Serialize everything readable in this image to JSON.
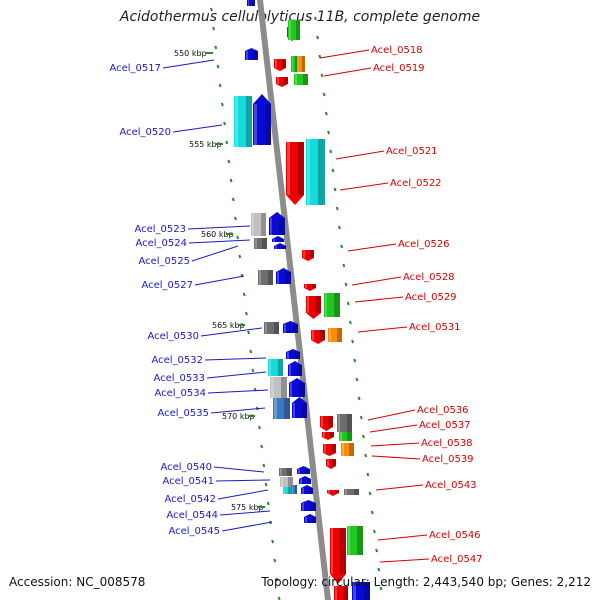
{
  "title": "Acidothermus cellulolyticus 11B, complete genome",
  "accession_text": "Accession: NC_008578",
  "topology_text": "Topology: circular; Length: 2,443,540 bp; Genes: 2,212",
  "ticks": [
    "550 kbp",
    "555 kbp",
    "560 kbp",
    "565 kbp",
    "570 kbp",
    "575 kbp"
  ],
  "colors": {
    "left_label": "#1a1ac8",
    "right_label": "#d40000",
    "backbone": "#8c8c8c",
    "dash": "#2a8a2a",
    "blue": "#0a0ad8",
    "cyan": "#14dcdc",
    "red": "#ee0000",
    "green": "#1ec81e",
    "orange": "#ff8c00",
    "gray": "#6e6e6e",
    "light_gray": "#c0c0c0",
    "steel": "#3a78c0"
  },
  "left_labels": [
    "Acel_0517",
    "Acel_0520",
    "Acel_0523",
    "Acel_0524",
    "Acel_0525",
    "Acel_0527",
    "Acel_0530",
    "Acel_0532",
    "Acel_0533",
    "Acel_0534",
    "Acel_0535",
    "Acel_0540",
    "Acel_0541",
    "Acel_0542",
    "Acel_0544",
    "Acel_0545"
  ],
  "right_labels": [
    "Acel_0518",
    "Acel_0519",
    "Acel_0521",
    "Acel_0522",
    "Acel_0526",
    "Acel_0528",
    "Acel_0529",
    "Acel_0531",
    "Acel_0536",
    "Acel_0537",
    "Acel_0538",
    "Acel_0539",
    "Acel_0543",
    "Acel_0546",
    "Acel_0547"
  ]
}
